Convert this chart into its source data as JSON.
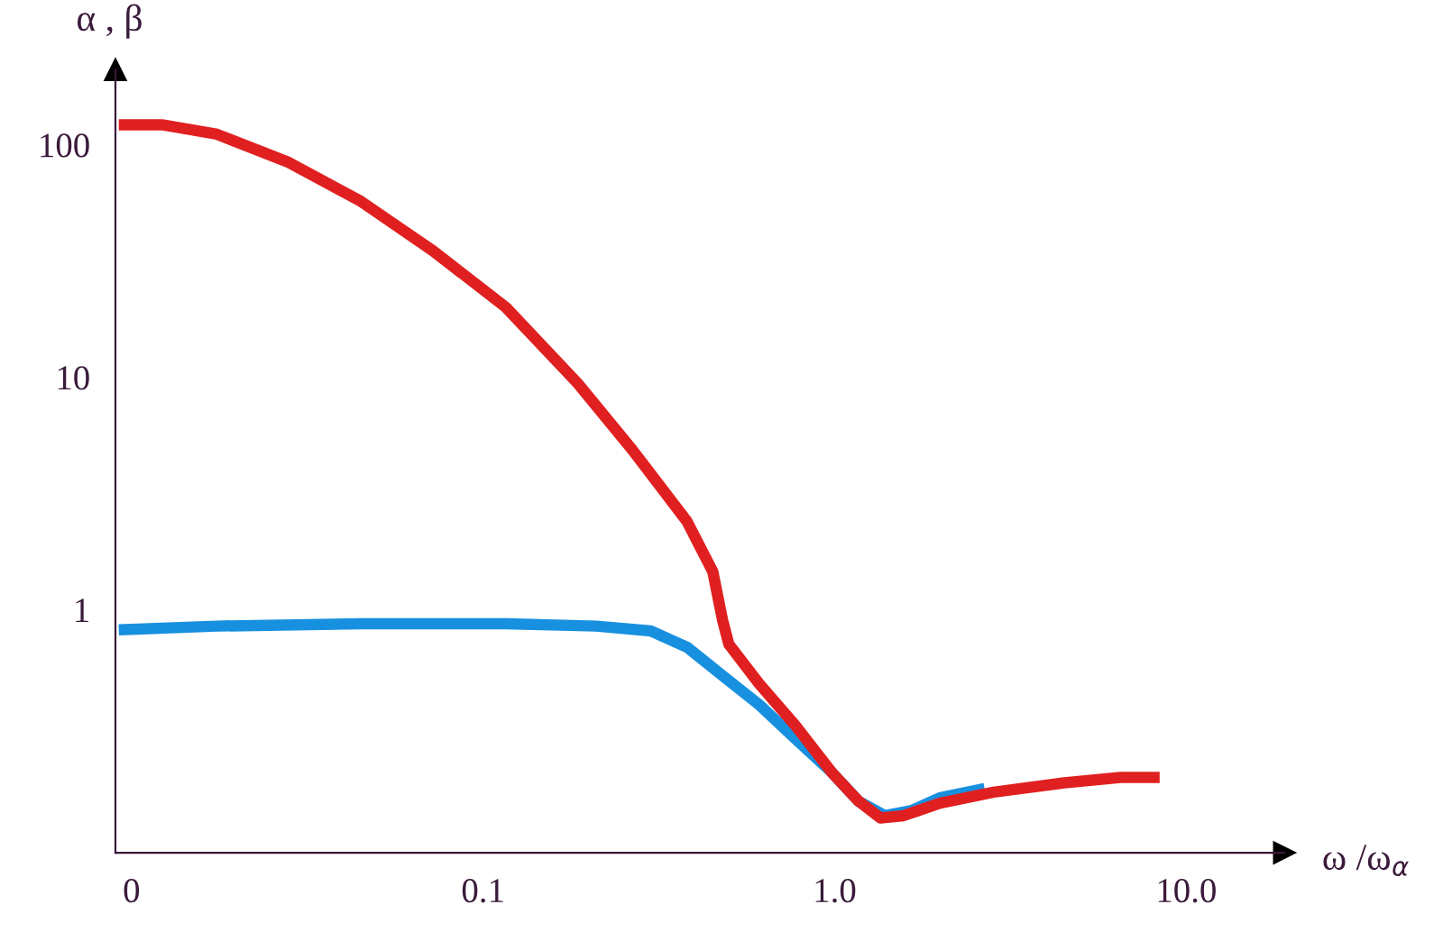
{
  "chart_data": {
    "type": "line",
    "xlabel": "ω /ω$_{α}$",
    "ylabel": "α , β",
    "log": "xy",
    "grid": false,
    "marker": "none",
    "line_style": "solid",
    "xlim": [
      0.009,
      19
    ],
    "ylim": [
      0.09,
      210
    ],
    "xticks": [
      {
        "value": 0.01,
        "label": "0"
      },
      0.1,
      {
        "value": 1,
        "label": "1.0"
      },
      {
        "value": 10,
        "label": "10.0"
      }
    ],
    "yticks": [
      1,
      10,
      100
    ],
    "series": [
      {
        "color": "#1890e0",
        "x": [
          0.0092,
          0.0175,
          0.045,
          0.116,
          0.21,
          0.3,
          0.38,
          0.48,
          0.61,
          0.77,
          0.98,
          1.17,
          1.39,
          1.66,
          1.99,
          2.67
        ],
        "values": [
          0.82,
          0.85,
          0.87,
          0.87,
          0.85,
          0.81,
          0.69,
          0.52,
          0.39,
          0.28,
          0.2,
          0.15,
          0.13,
          0.137,
          0.155,
          0.17
        ]
      },
      {
        "color": "#e02020",
        "x": [
          0.0092,
          0.0122,
          0.0175,
          0.028,
          0.045,
          0.072,
          0.116,
          0.186,
          0.265,
          0.38,
          0.45,
          0.48,
          0.5,
          0.61,
          0.77,
          0.98,
          1.17,
          1.35,
          1.57,
          1.99,
          2.83,
          4.5,
          6.5,
          8.4
        ],
        "values": [
          122,
          122,
          111,
          84,
          57,
          35,
          20,
          9.4,
          4.9,
          2.4,
          1.46,
          0.9,
          0.71,
          0.48,
          0.32,
          0.2,
          0.15,
          0.127,
          0.13,
          0.147,
          0.164,
          0.18,
          0.19,
          0.19
        ]
      }
    ]
  }
}
